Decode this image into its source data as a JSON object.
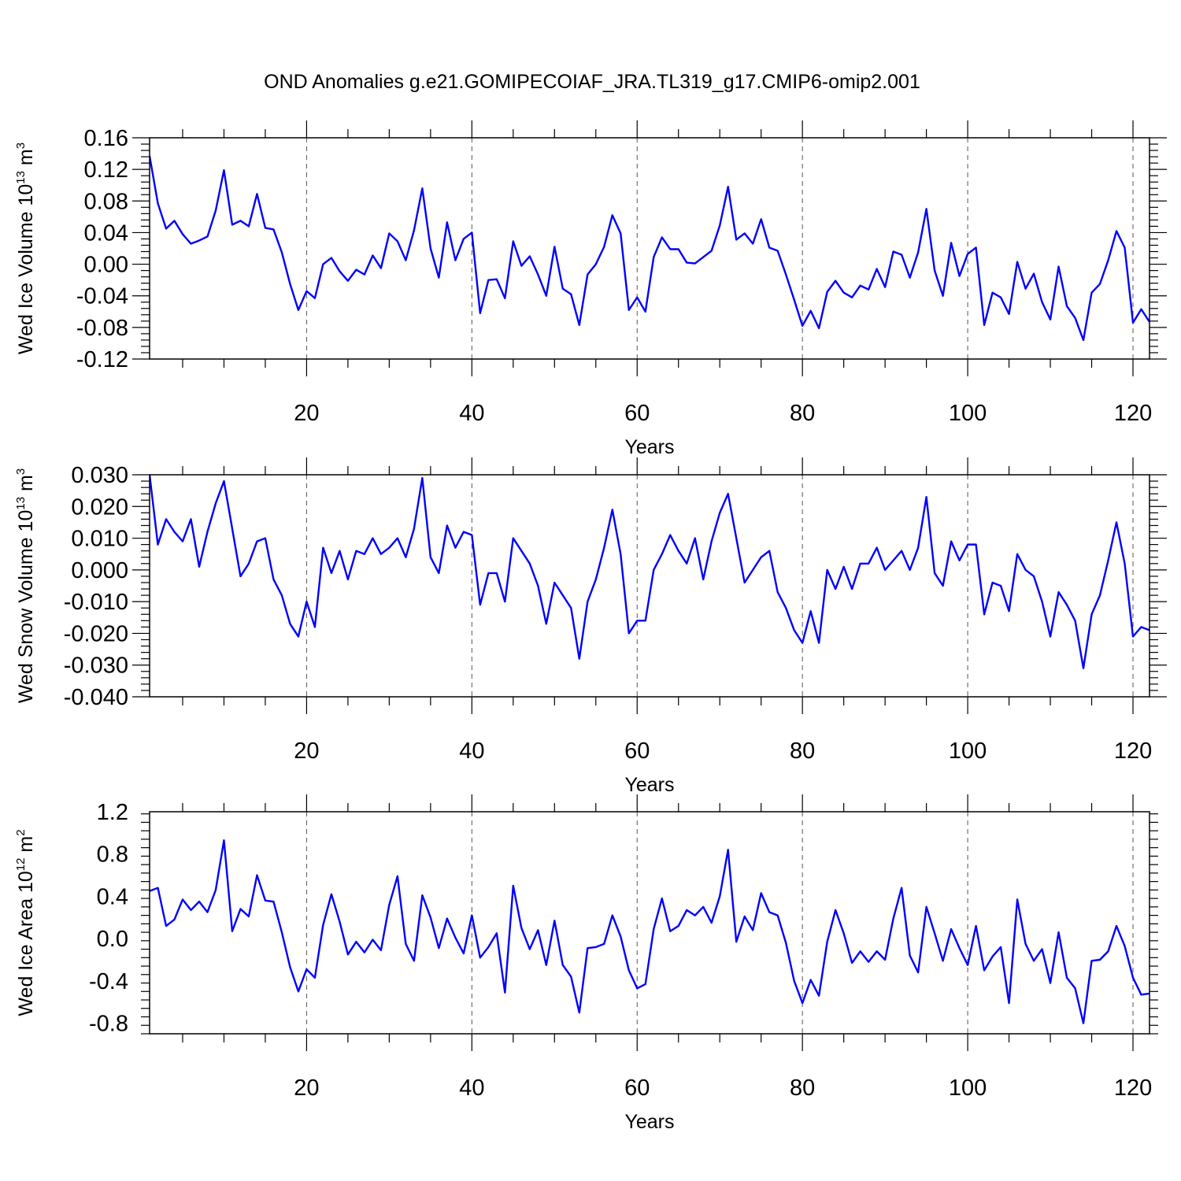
{
  "title": "OND Anomalies g.e21.GOMIPECOIAF_JRA.TL319_g17.CMIP6-omip2.001",
  "colors": {
    "line": "#0000ff",
    "grid": "#555555",
    "axis": "#000000"
  },
  "chart_data": [
    {
      "type": "line",
      "xlabel": "Years",
      "ylabel_main": "Wed Ice Volume 10",
      "ylabel_sup": "13",
      "ylabel_unit": " m",
      "ylabel_unit_sup": "3",
      "xlim": [
        1,
        122
      ],
      "ylim": [
        -0.12,
        0.16
      ],
      "yticks": [
        -0.12,
        -0.08,
        -0.04,
        0.0,
        0.04,
        0.08,
        0.12,
        0.16
      ],
      "ytick_labels": [
        "-0.12",
        "-0.08",
        "-0.04",
        "0.00",
        "0.04",
        "0.08",
        "0.12",
        "0.16"
      ],
      "xticks": [
        20,
        40,
        60,
        80,
        100,
        120
      ],
      "xtick_labels": [
        "20",
        "40",
        "60",
        "80",
        "100",
        "120"
      ],
      "grid": "vertical dashed at major x ticks",
      "series": [
        {
          "x_start": 1,
          "values": [
            0.137,
            0.077,
            0.045,
            0.055,
            0.038,
            0.026,
            0.03,
            0.035,
            0.068,
            0.119,
            0.05,
            0.055,
            0.048,
            0.089,
            0.046,
            0.044,
            0.015,
            -0.025,
            -0.058,
            -0.034,
            -0.043,
            0.0,
            0.008,
            -0.009,
            -0.021,
            -0.007,
            -0.013,
            0.011,
            -0.005,
            0.039,
            0.029,
            0.005,
            0.043,
            0.096,
            0.02,
            -0.017,
            0.053,
            0.005,
            0.032,
            0.04,
            -0.062,
            -0.02,
            -0.019,
            -0.043,
            0.029,
            -0.002,
            0.01,
            -0.013,
            -0.04,
            0.022,
            -0.031,
            -0.038,
            -0.077,
            -0.013,
            0.0,
            0.022,
            0.062,
            0.039,
            -0.058,
            -0.042,
            -0.06,
            0.009,
            0.034,
            0.019,
            0.019,
            0.002,
            0.001,
            0.009,
            0.017,
            0.049,
            0.098,
            0.031,
            0.039,
            0.026,
            0.057,
            0.021,
            0.017,
            -0.013,
            -0.045,
            -0.078,
            -0.059,
            -0.081,
            -0.035,
            -0.021,
            -0.036,
            -0.042,
            -0.027,
            -0.032,
            -0.006,
            -0.029,
            0.016,
            0.012,
            -0.017,
            0.015,
            0.07,
            -0.008,
            -0.04,
            0.027,
            -0.015,
            0.013,
            0.021,
            -0.077,
            -0.036,
            -0.042,
            -0.063,
            0.003,
            -0.031,
            -0.012,
            -0.048,
            -0.07,
            -0.003,
            -0.053,
            -0.068,
            -0.096,
            -0.036,
            -0.025,
            0.005,
            0.042,
            0.021,
            -0.074,
            -0.057,
            -0.073
          ]
        }
      ]
    },
    {
      "type": "line",
      "xlabel": "Years",
      "ylabel_main": "Wed Snow Volume 10",
      "ylabel_sup": "13",
      "ylabel_unit": " m",
      "ylabel_unit_sup": "3",
      "xlim": [
        1,
        122
      ],
      "ylim": [
        -0.04,
        0.03
      ],
      "yticks": [
        -0.04,
        -0.03,
        -0.02,
        -0.01,
        0.0,
        0.01,
        0.02,
        0.03
      ],
      "ytick_labels": [
        "-0.040",
        "-0.030",
        "-0.020",
        "-0.010",
        "0.000",
        "0.010",
        "0.020",
        "0.030"
      ],
      "xticks": [
        20,
        40,
        60,
        80,
        100,
        120
      ],
      "xtick_labels": [
        "20",
        "40",
        "60",
        "80",
        "100",
        "120"
      ],
      "grid": "vertical dashed at major x ticks",
      "series": [
        {
          "x_start": 1,
          "values": [
            0.03,
            0.008,
            0.016,
            0.012,
            0.009,
            0.016,
            0.001,
            0.012,
            0.021,
            0.028,
            0.013,
            -0.002,
            0.002,
            0.009,
            0.01,
            -0.003,
            -0.008,
            -0.017,
            -0.021,
            -0.01,
            -0.018,
            0.007,
            -0.001,
            0.006,
            -0.003,
            0.006,
            0.005,
            0.01,
            0.005,
            0.007,
            0.01,
            0.004,
            0.013,
            0.029,
            0.004,
            -0.001,
            0.014,
            0.007,
            0.012,
            0.011,
            -0.011,
            -0.001,
            -0.001,
            -0.01,
            0.01,
            0.006,
            0.002,
            -0.005,
            -0.017,
            -0.004,
            -0.008,
            -0.012,
            -0.028,
            -0.01,
            -0.003,
            0.007,
            0.019,
            0.005,
            -0.02,
            -0.016,
            -0.016,
            0.0,
            0.005,
            0.011,
            0.006,
            0.002,
            0.01,
            -0.003,
            0.009,
            0.018,
            0.024,
            0.01,
            -0.004,
            0.0,
            0.004,
            0.006,
            -0.007,
            -0.012,
            -0.019,
            -0.023,
            -0.013,
            -0.023,
            0.0,
            -0.006,
            0.001,
            -0.006,
            0.002,
            0.002,
            0.007,
            0.0,
            0.003,
            0.006,
            0.0,
            0.007,
            0.023,
            -0.001,
            -0.005,
            0.009,
            0.003,
            0.008,
            0.008,
            -0.014,
            -0.004,
            -0.005,
            -0.013,
            0.005,
            0.0,
            -0.002,
            -0.01,
            -0.021,
            -0.007,
            -0.011,
            -0.016,
            -0.031,
            -0.014,
            -0.008,
            0.003,
            0.015,
            0.002,
            -0.021,
            -0.018,
            -0.019
          ]
        }
      ]
    },
    {
      "type": "line",
      "xlabel": "Years",
      "ylabel_main": "Wed Ice Area 10",
      "ylabel_sup": "12",
      "ylabel_unit": " m",
      "ylabel_unit_sup": "2",
      "xlim": [
        1,
        122
      ],
      "ylim": [
        -0.9,
        1.2
      ],
      "yticks": [
        -0.8,
        -0.4,
        0.0,
        0.4,
        0.8,
        1.2
      ],
      "ytick_labels": [
        "-0.8",
        "-0.4",
        "0.0",
        "0.4",
        "0.8",
        "1.2"
      ],
      "xticks": [
        20,
        40,
        60,
        80,
        100,
        120
      ],
      "xtick_labels": [
        "20",
        "40",
        "60",
        "80",
        "100",
        "120"
      ],
      "grid": "vertical dashed at major x ticks",
      "series": [
        {
          "x_start": 1,
          "values": [
            0.45,
            0.48,
            0.12,
            0.18,
            0.37,
            0.27,
            0.35,
            0.25,
            0.46,
            0.93,
            0.07,
            0.28,
            0.21,
            0.6,
            0.36,
            0.35,
            0.06,
            -0.27,
            -0.5,
            -0.29,
            -0.37,
            0.13,
            0.42,
            0.16,
            -0.15,
            -0.03,
            -0.13,
            -0.01,
            -0.11,
            0.32,
            0.59,
            -0.05,
            -0.21,
            0.41,
            0.2,
            -0.09,
            0.19,
            0.01,
            -0.14,
            0.22,
            -0.18,
            -0.08,
            0.05,
            -0.51,
            0.5,
            0.1,
            -0.1,
            0.08,
            -0.25,
            0.17,
            -0.25,
            -0.36,
            -0.7,
            -0.09,
            -0.08,
            -0.05,
            0.22,
            0.02,
            -0.3,
            -0.47,
            -0.43,
            0.09,
            0.38,
            0.07,
            0.12,
            0.27,
            0.22,
            0.3,
            0.15,
            0.4,
            0.84,
            -0.03,
            0.21,
            0.08,
            0.43,
            0.25,
            0.22,
            -0.04,
            -0.4,
            -0.61,
            -0.39,
            -0.54,
            -0.03,
            0.27,
            0.05,
            -0.23,
            -0.12,
            -0.22,
            -0.12,
            -0.2,
            0.19,
            0.48,
            -0.16,
            -0.32,
            0.3,
            0.05,
            -0.21,
            0.09,
            -0.09,
            -0.25,
            0.12,
            -0.3,
            -0.17,
            -0.08,
            -0.61,
            0.37,
            -0.05,
            -0.21,
            -0.1,
            -0.42,
            0.06,
            -0.37,
            -0.47,
            -0.8,
            -0.21,
            -0.2,
            -0.12,
            0.12,
            -0.07,
            -0.37,
            -0.53,
            -0.52
          ]
        }
      ]
    }
  ]
}
